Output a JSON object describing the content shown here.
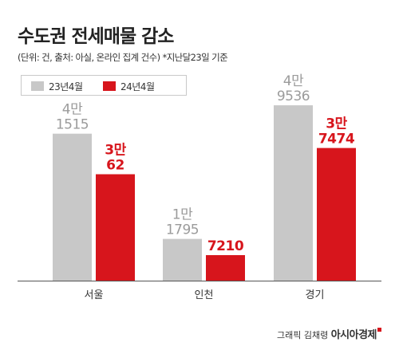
{
  "header": {
    "title": "수도권 전세매물 감소",
    "subtitle": "(단위: 건, 출처: 아실, 온라인 집계 건수) *지난달23일 기준"
  },
  "legend": {
    "items": [
      {
        "label": "23년4월",
        "color": "#c8c8c8"
      },
      {
        "label": "24년4월",
        "color": "#d7151c"
      }
    ]
  },
  "credit": {
    "byline": "그래픽 김채령",
    "brand": "아시아경제"
  },
  "chart_data": {
    "type": "bar",
    "title": "수도권 전세매물 감소",
    "categories": [
      "서울",
      "인천",
      "경기"
    ],
    "series": [
      {
        "name": "23년4월",
        "values": [
          41515,
          11795,
          49536
        ],
        "labels": [
          [
            "4만",
            "1515"
          ],
          [
            "1만",
            "1795"
          ],
          [
            "4만",
            "9536"
          ]
        ],
        "color": "#c8c8c8",
        "label_color": "#9b9b9b"
      },
      {
        "name": "24년4월",
        "values": [
          30062,
          7210,
          37474
        ],
        "labels": [
          [
            "3만",
            "62"
          ],
          [
            "7210"
          ],
          [
            "3만",
            "7474"
          ]
        ],
        "color": "#d7151c",
        "label_color": "#d7151c"
      }
    ],
    "ylim": [
      0,
      50000
    ],
    "grid": false,
    "legend_position": "top-left",
    "xlabel": "",
    "ylabel": ""
  }
}
